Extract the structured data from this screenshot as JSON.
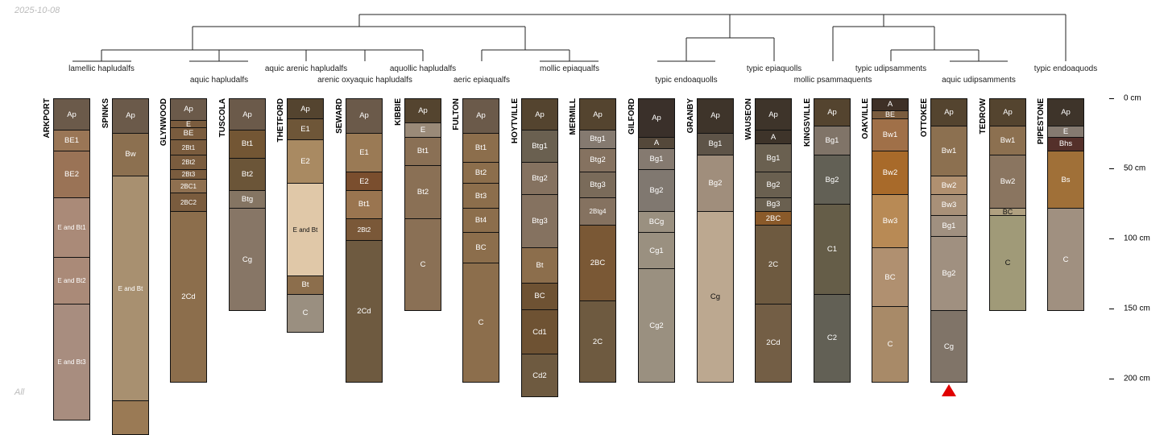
{
  "header": {
    "date": "2025-10-08",
    "footer": "All"
  },
  "taxa": [
    "lamellic hapludalfs",
    "aquic hapludalfs",
    "aquic arenic hapludalfs",
    "arenic oxyaquic hapludalfs",
    "aquollic hapludalfs",
    "aeric epiaqualfs",
    "mollic epiaqualfs",
    "typic endoaquolls",
    "typic epiaquolls",
    "mollic psammaquents",
    "typic udipsamments",
    "aquic udipsamments",
    "typic endoaquods"
  ],
  "depth_axis": {
    "unit": "cm",
    "ticks": [
      "0 cm",
      "50 cm",
      "100 cm",
      "150 cm",
      "200 cm"
    ],
    "tick_values": [
      0,
      50,
      100,
      150,
      200
    ]
  },
  "marker_profile": "OTTOKEE",
  "marker_color": "#e00000",
  "profiles": [
    {
      "name": "ARKPORT",
      "horizons": [
        {
          "name": "Ap",
          "top": 0,
          "bottom": 23,
          "color": "#6b5a4a"
        },
        {
          "name": "BE1",
          "top": 23,
          "bottom": 38,
          "color": "#9a7656"
        },
        {
          "name": "BE2",
          "top": 38,
          "bottom": 71,
          "color": "#9a7356"
        },
        {
          "name": "E and Bt1",
          "top": 71,
          "bottom": 114,
          "color": "#aa8a78"
        },
        {
          "name": "E and Bt2",
          "top": 114,
          "bottom": 147,
          "color": "#aa8a78"
        },
        {
          "name": "E and Bt3",
          "top": 147,
          "bottom": 230,
          "color": "#a88d7f"
        }
      ]
    },
    {
      "name": "SPINKS",
      "horizons": [
        {
          "name": "Ap",
          "top": 0,
          "bottom": 25,
          "color": "#6b5a4a"
        },
        {
          "name": "Bw",
          "top": 25,
          "bottom": 56,
          "color": "#8c7050"
        },
        {
          "name": "E and Bt",
          "top": 56,
          "bottom": 216,
          "color": "#a89070"
        },
        {
          "name": "",
          "top": 216,
          "bottom": 240,
          "color": "#9a7a55"
        }
      ]
    },
    {
      "name": "GLYNWOOD",
      "horizons": [
        {
          "name": "Ap",
          "top": 0,
          "bottom": 16,
          "color": "#6b5a4a"
        },
        {
          "name": "E",
          "top": 16,
          "bottom": 21,
          "color": "#7a5c3e"
        },
        {
          "name": "BE",
          "top": 21,
          "bottom": 30,
          "color": "#7a5c3e"
        },
        {
          "name": "2Bt1",
          "top": 30,
          "bottom": 41,
          "color": "#7a5c3e"
        },
        {
          "name": "2Bt2",
          "top": 41,
          "bottom": 51,
          "color": "#7a5c3e"
        },
        {
          "name": "2Bt3",
          "top": 51,
          "bottom": 58,
          "color": "#7a5c3e"
        },
        {
          "name": "2BC1",
          "top": 58,
          "bottom": 68,
          "color": "#8f7050"
        },
        {
          "name": "2BC2",
          "top": 68,
          "bottom": 81,
          "color": "#7a5c3e"
        },
        {
          "name": "2Cd",
          "top": 81,
          "bottom": 203,
          "color": "#8c6e4c"
        }
      ]
    },
    {
      "name": "TUSCOLA",
      "horizons": [
        {
          "name": "Ap",
          "top": 0,
          "bottom": 23,
          "color": "#6b5a4a"
        },
        {
          "name": "Bt1",
          "top": 23,
          "bottom": 43,
          "color": "#735634"
        },
        {
          "name": "Bt2",
          "top": 43,
          "bottom": 66,
          "color": "#6b5538"
        },
        {
          "name": "Btg",
          "top": 66,
          "bottom": 79,
          "color": "#857563"
        },
        {
          "name": "Cg",
          "top": 79,
          "bottom": 152,
          "color": "#877666"
        }
      ]
    },
    {
      "name": "THETFORD",
      "horizons": [
        {
          "name": "Ap",
          "top": 0,
          "bottom": 15,
          "color": "#54442f"
        },
        {
          "name": "E1",
          "top": 15,
          "bottom": 30,
          "color": "#6e5638"
        },
        {
          "name": "E2",
          "top": 30,
          "bottom": 61,
          "color": "#a98a62"
        },
        {
          "name": "E and Bt",
          "top": 61,
          "bottom": 127,
          "color": "#e0c8a8"
        },
        {
          "name": "Bt",
          "top": 127,
          "bottom": 140,
          "color": "#8c6e4c"
        },
        {
          "name": "C",
          "top": 140,
          "bottom": 167,
          "color": "#9a8f80"
        }
      ]
    },
    {
      "name": "SEWARD",
      "horizons": [
        {
          "name": "Ap",
          "top": 0,
          "bottom": 25,
          "color": "#6b5a4a"
        },
        {
          "name": "E1",
          "top": 25,
          "bottom": 53,
          "color": "#9a7a55"
        },
        {
          "name": "E2",
          "top": 53,
          "bottom": 66,
          "color": "#7a4e2e"
        },
        {
          "name": "Bt1",
          "top": 66,
          "bottom": 86,
          "color": "#9a7550"
        },
        {
          "name": "2Bt2",
          "top": 86,
          "bottom": 102,
          "color": "#7a5838"
        },
        {
          "name": "2Cd",
          "top": 102,
          "bottom": 203,
          "color": "#6e5a40"
        }
      ]
    },
    {
      "name": "KIBBIE",
      "horizons": [
        {
          "name": "Ap",
          "top": 0,
          "bottom": 18,
          "color": "#54442f"
        },
        {
          "name": "E",
          "top": 18,
          "bottom": 28,
          "color": "#9a8a78"
        },
        {
          "name": "Bt1",
          "top": 28,
          "bottom": 48,
          "color": "#8a7055"
        },
        {
          "name": "Bt2",
          "top": 48,
          "bottom": 86,
          "color": "#8a7055"
        },
        {
          "name": "C",
          "top": 86,
          "bottom": 152,
          "color": "#8a7055"
        }
      ]
    },
    {
      "name": "FULTON",
      "horizons": [
        {
          "name": "Ap",
          "top": 0,
          "bottom": 25,
          "color": "#6b5a4a"
        },
        {
          "name": "Bt1",
          "top": 25,
          "bottom": 46,
          "color": "#8c6e4c"
        },
        {
          "name": "Bt2",
          "top": 46,
          "bottom": 61,
          "color": "#8c6e4c"
        },
        {
          "name": "Bt3",
          "top": 61,
          "bottom": 79,
          "color": "#8c6e4c"
        },
        {
          "name": "Bt4",
          "top": 79,
          "bottom": 96,
          "color": "#8c6e4c"
        },
        {
          "name": "BC",
          "top": 96,
          "bottom": 118,
          "color": "#8c6e4c"
        },
        {
          "name": "C",
          "top": 118,
          "bottom": 203,
          "color": "#8c6e4c"
        }
      ]
    },
    {
      "name": "HOYTVILLE",
      "horizons": [
        {
          "name": "Ap",
          "top": 0,
          "bottom": 23,
          "color": "#54442f"
        },
        {
          "name": "Btg1",
          "top": 23,
          "bottom": 46,
          "color": "#6a6050"
        },
        {
          "name": "Btg2",
          "top": 46,
          "bottom": 69,
          "color": "#857260"
        },
        {
          "name": "Btg3",
          "top": 69,
          "bottom": 107,
          "color": "#857260"
        },
        {
          "name": "Bt",
          "top": 107,
          "bottom": 132,
          "color": "#8c6e4c"
        },
        {
          "name": "BC",
          "top": 132,
          "bottom": 151,
          "color": "#6e5233"
        },
        {
          "name": "Cd1",
          "top": 151,
          "bottom": 183,
          "color": "#6e5233"
        },
        {
          "name": "Cd2",
          "top": 183,
          "bottom": 213,
          "color": "#6e5a40"
        }
      ]
    },
    {
      "name": "MERMILL",
      "horizons": [
        {
          "name": "Ap",
          "top": 0,
          "bottom": 23,
          "color": "#54442f"
        },
        {
          "name": "Btg1",
          "top": 23,
          "bottom": 36,
          "color": "#857a70"
        },
        {
          "name": "Btg2",
          "top": 36,
          "bottom": 53,
          "color": "#857260"
        },
        {
          "name": "Btg3",
          "top": 53,
          "bottom": 71,
          "color": "#7a6b5a"
        },
        {
          "name": "2Btg4",
          "top": 71,
          "bottom": 91,
          "color": "#857260"
        },
        {
          "name": "2BC",
          "top": 91,
          "bottom": 145,
          "color": "#7a5835"
        },
        {
          "name": "2C",
          "top": 145,
          "bottom": 203,
          "color": "#6e5a40"
        }
      ]
    },
    {
      "name": "GILFORD",
      "horizons": [
        {
          "name": "Ap",
          "top": 0,
          "bottom": 28,
          "color": "#3a302a"
        },
        {
          "name": "A",
          "top": 28,
          "bottom": 36,
          "color": "#54483a"
        },
        {
          "name": "Bg1",
          "top": 36,
          "bottom": 51,
          "color": "#857a70"
        },
        {
          "name": "Bg2",
          "top": 51,
          "bottom": 81,
          "color": "#807870"
        },
        {
          "name": "BCg",
          "top": 81,
          "bottom": 96,
          "color": "#9a9080"
        },
        {
          "name": "Cg1",
          "top": 96,
          "bottom": 122,
          "color": "#9a9080"
        },
        {
          "name": "Cg2",
          "top": 122,
          "bottom": 203,
          "color": "#9a9080"
        }
      ]
    },
    {
      "name": "GRANBY",
      "horizons": [
        {
          "name": "Ap",
          "top": 0,
          "bottom": 25,
          "color": "#3e342a"
        },
        {
          "name": "Bg1",
          "top": 25,
          "bottom": 41,
          "color": "#5e5448"
        },
        {
          "name": "Bg2",
          "top": 41,
          "bottom": 81,
          "color": "#a08e7c"
        },
        {
          "name": "Cg",
          "top": 81,
          "bottom": 203,
          "color": "#bca890"
        }
      ]
    },
    {
      "name": "WAUSEON",
      "horizons": [
        {
          "name": "Ap",
          "top": 0,
          "bottom": 23,
          "color": "#3e342a"
        },
        {
          "name": "A",
          "top": 23,
          "bottom": 33,
          "color": "#3e342a"
        },
        {
          "name": "Bg1",
          "top": 33,
          "bottom": 53,
          "color": "#6a6050"
        },
        {
          "name": "Bg2",
          "top": 53,
          "bottom": 71,
          "color": "#6a6050"
        },
        {
          "name": "Bg3",
          "top": 71,
          "bottom": 81,
          "color": "#6a6050"
        },
        {
          "name": "2BC",
          "top": 81,
          "bottom": 91,
          "color": "#8a5a2a"
        },
        {
          "name": "2C",
          "top": 91,
          "bottom": 147,
          "color": "#6e5a40"
        },
        {
          "name": "2Cd",
          "top": 147,
          "bottom": 203,
          "color": "#735e45"
        }
      ]
    },
    {
      "name": "KINGSVILLE",
      "horizons": [
        {
          "name": "Ap",
          "top": 0,
          "bottom": 20,
          "color": "#54442f"
        },
        {
          "name": "Bg1",
          "top": 20,
          "bottom": 41,
          "color": "#807468"
        },
        {
          "name": "Bg2",
          "top": 41,
          "bottom": 76,
          "color": "#626055"
        },
        {
          "name": "C1",
          "top": 76,
          "bottom": 140,
          "color": "#655d48"
        },
        {
          "name": "C2",
          "top": 140,
          "bottom": 203,
          "color": "#626055"
        }
      ]
    },
    {
      "name": "OAKVILLE",
      "horizons": [
        {
          "name": "A",
          "top": 0,
          "bottom": 9,
          "color": "#3e3026"
        },
        {
          "name": "BE",
          "top": 9,
          "bottom": 15,
          "color": "#7a5c3e"
        },
        {
          "name": "Bw1",
          "top": 15,
          "bottom": 38,
          "color": "#a07048"
        },
        {
          "name": "Bw2",
          "top": 38,
          "bottom": 69,
          "color": "#a86a2a"
        },
        {
          "name": "Bw3",
          "top": 69,
          "bottom": 107,
          "color": "#b88a55"
        },
        {
          "name": "BC",
          "top": 107,
          "bottom": 149,
          "color": "#b09070"
        },
        {
          "name": "C",
          "top": 149,
          "bottom": 203,
          "color": "#a88a68"
        }
      ]
    },
    {
      "name": "OTTOKEE",
      "horizons": [
        {
          "name": "Ap",
          "top": 0,
          "bottom": 20,
          "color": "#54442f"
        },
        {
          "name": "Bw1",
          "top": 20,
          "bottom": 56,
          "color": "#8c7050"
        },
        {
          "name": "Bw2",
          "top": 56,
          "bottom": 69,
          "color": "#b09070"
        },
        {
          "name": "Bw3",
          "top": 69,
          "bottom": 84,
          "color": "#a89078"
        },
        {
          "name": "Bg1",
          "top": 84,
          "bottom": 99,
          "color": "#a09080"
        },
        {
          "name": "Bg2",
          "top": 99,
          "bottom": 152,
          "color": "#a09080"
        },
        {
          "name": "Cg",
          "top": 152,
          "bottom": 203,
          "color": "#807468"
        }
      ]
    },
    {
      "name": "TEDROW",
      "horizons": [
        {
          "name": "Ap",
          "top": 0,
          "bottom": 20,
          "color": "#54442f"
        },
        {
          "name": "Bw1",
          "top": 20,
          "bottom": 41,
          "color": "#8c7050"
        },
        {
          "name": "Bw2",
          "top": 41,
          "bottom": 79,
          "color": "#8a7560"
        },
        {
          "name": "BC",
          "top": 79,
          "bottom": 84,
          "color": "#b0a080"
        },
        {
          "name": "C",
          "top": 84,
          "bottom": 152,
          "color": "#a09a78"
        }
      ]
    },
    {
      "name": "PIPESTONE",
      "horizons": [
        {
          "name": "Ap",
          "top": 0,
          "bottom": 20,
          "color": "#3e342a"
        },
        {
          "name": "E",
          "top": 20,
          "bottom": 28,
          "color": "#857a70"
        },
        {
          "name": "Bhs",
          "top": 28,
          "bottom": 38,
          "color": "#54302a"
        },
        {
          "name": "Bs",
          "top": 38,
          "bottom": 79,
          "color": "#a07038"
        },
        {
          "name": "C",
          "top": 79,
          "bottom": 152,
          "color": "#a09080"
        }
      ]
    }
  ]
}
